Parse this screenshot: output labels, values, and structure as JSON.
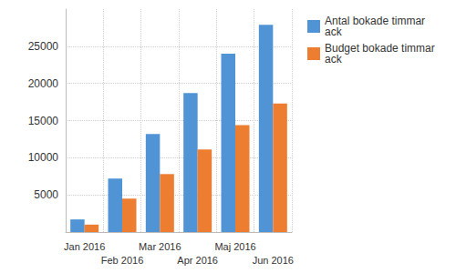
{
  "chart_data": {
    "type": "bar",
    "categories": [
      "Jan 2016",
      "Feb 2016",
      "Mar 2016",
      "Apr 2016",
      "Maj 2016",
      "Jun 2016"
    ],
    "series": [
      {
        "name": "Antal bokade timmar ack",
        "color": "#5094d6",
        "values": [
          1700,
          7200,
          13200,
          18700,
          24000,
          27900
        ]
      },
      {
        "name": "Budget bokade timmar ack",
        "color": "#ed7d31",
        "values": [
          1000,
          4500,
          7800,
          11100,
          14400,
          17300
        ]
      }
    ],
    "ylim": [
      0,
      30000
    ],
    "yticks": [
      5000,
      10000,
      15000,
      20000,
      25000
    ],
    "grid": true,
    "legend": "top-right"
  }
}
